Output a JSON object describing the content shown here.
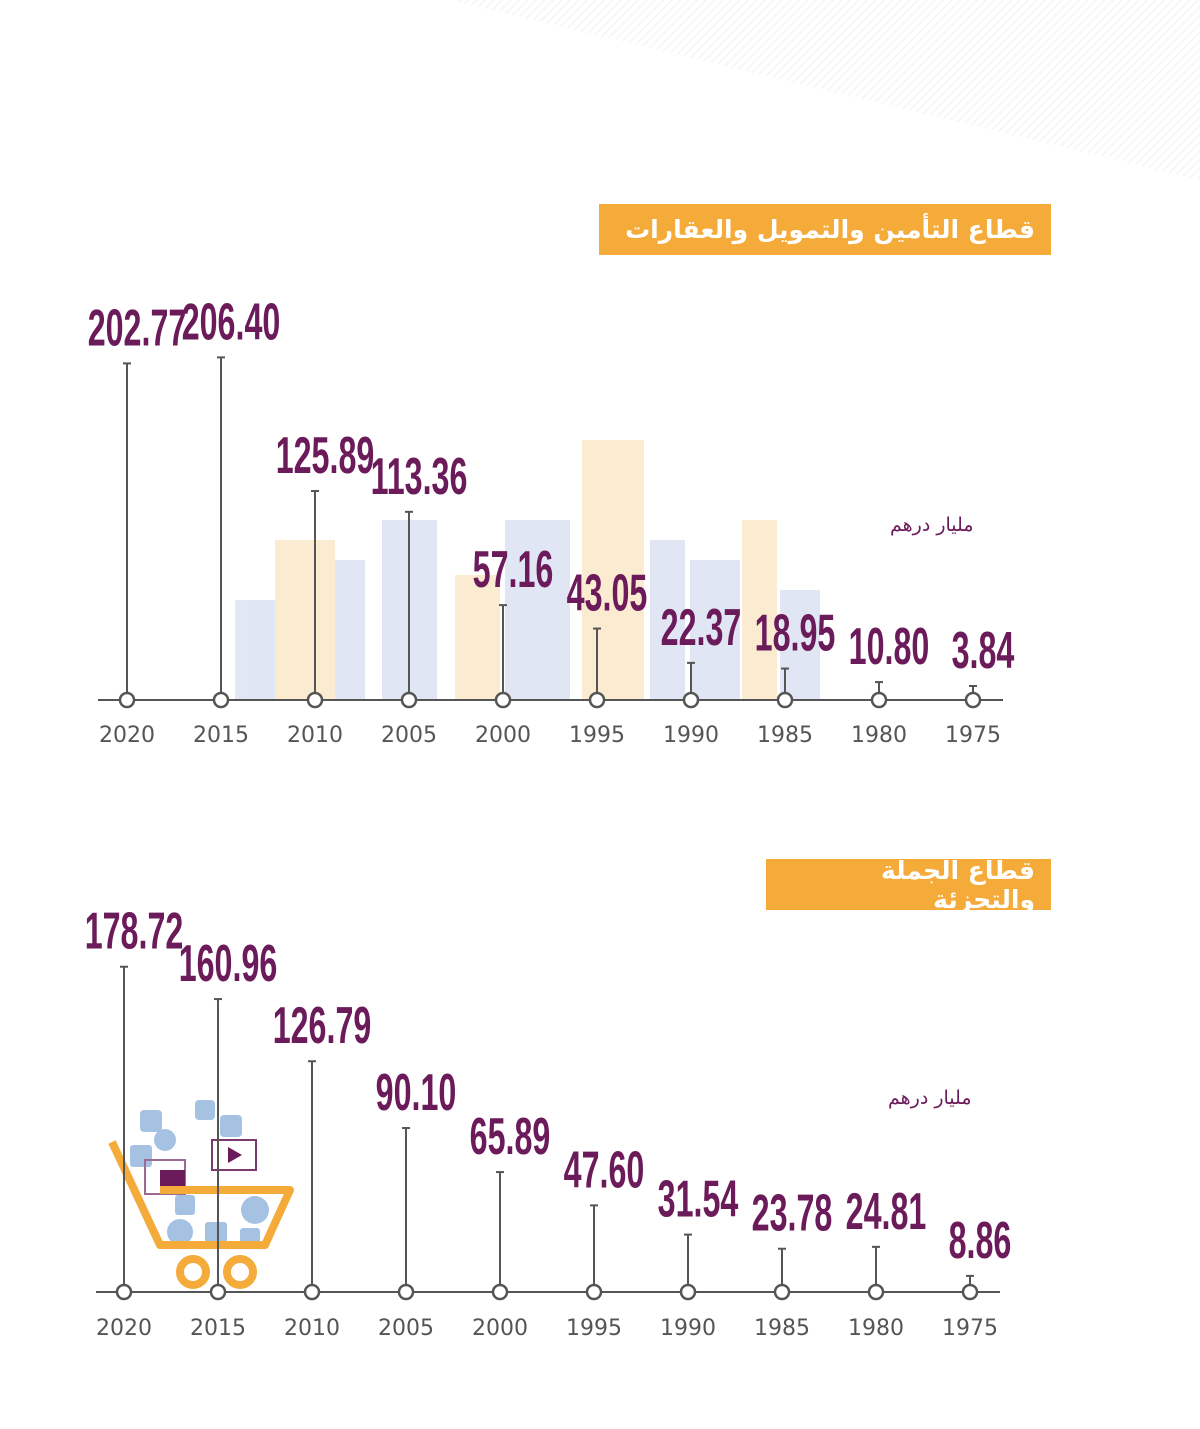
{
  "colors": {
    "value_label": "#6b1a5a",
    "badge": "#f4ab3a",
    "axis": "#555555",
    "year_label": "#555555"
  },
  "chart_data": [
    {
      "type": "lollipop",
      "title": "قطاع التأمين والتمويل والعقارات",
      "unit": "مليار درهم",
      "categories": [
        "2020",
        "2015",
        "2010",
        "2005",
        "2000",
        "1995",
        "1990",
        "1985",
        "1980",
        "1975"
      ],
      "values": [
        202.77,
        206.4,
        125.89,
        113.36,
        57.16,
        43.05,
        22.37,
        18.95,
        10.8,
        3.84
      ],
      "labels": [
        "202.77",
        "206.40",
        "125.89",
        "113.36",
        "57.16",
        "43.05",
        "22.37",
        "18.95",
        "10.80",
        "3.84"
      ],
      "decoration": "city-skyline"
    },
    {
      "type": "lollipop",
      "title": "قطاع الجملة والتجزئة",
      "unit": "مليار درهم",
      "categories": [
        "2020",
        "2015",
        "2010",
        "2005",
        "2000",
        "1995",
        "1990",
        "1985",
        "1980",
        "1975"
      ],
      "values": [
        178.72,
        160.96,
        126.79,
        90.1,
        65.89,
        47.6,
        31.54,
        23.78,
        24.81,
        8.86
      ],
      "labels": [
        "178.72",
        "160.96",
        "126.79",
        "90.10",
        "65.89",
        "47.60",
        "31.54",
        "23.78",
        "24.81",
        "8.86"
      ],
      "decoration": "shopping-cart"
    }
  ]
}
